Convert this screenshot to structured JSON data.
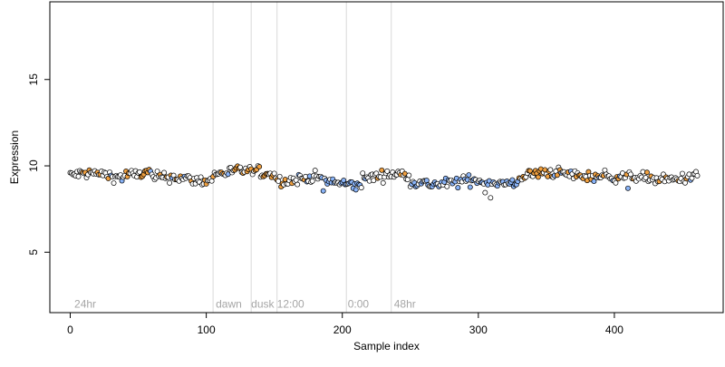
{
  "chart_data": {
    "type": "scatter",
    "title": "",
    "xlabel": "Sample index",
    "ylabel": "Expression",
    "xlim": [
      -15,
      480
    ],
    "ylim": [
      1.5,
      19.5
    ],
    "x_ticks": [
      0,
      100,
      200,
      300,
      400
    ],
    "y_ticks": [
      5,
      10,
      15
    ],
    "grid": false,
    "legend": "none",
    "n_points": 462,
    "colors": {
      "low": "#8ab4f8",
      "mid": "#ffffff",
      "high": "#f0a040",
      "outline": "#000000",
      "divider": "#d9d9d9",
      "annotation": "#a6a6a6"
    },
    "annotations": [
      {
        "x": 3,
        "y": 2.0,
        "label": "24hr"
      },
      {
        "x": 107,
        "y": 2.0,
        "label": "dawn"
      },
      {
        "x": 133,
        "y": 2.0,
        "label": "dusk"
      },
      {
        "x": 152,
        "y": 2.0,
        "label": "12:00"
      },
      {
        "x": 204,
        "y": 2.0,
        "label": "0:00"
      },
      {
        "x": 238,
        "y": 2.0,
        "label": "48hr"
      }
    ],
    "vlines": [
      105,
      133,
      152,
      203,
      236
    ],
    "series": [
      {
        "segments": [
          {
            "from": 0,
            "to": 40,
            "level": 9.45,
            "color": "mid"
          },
          {
            "from": 40,
            "to": 60,
            "level": 9.6,
            "color": "high"
          },
          {
            "from": 60,
            "to": 105,
            "level": 9.25,
            "color": "mid"
          },
          {
            "from": 105,
            "to": 152,
            "level": 9.6,
            "color": "high"
          },
          {
            "from": 152,
            "to": 185,
            "level": 9.25,
            "color": "mid"
          },
          {
            "from": 185,
            "to": 215,
            "level": 9.0,
            "color": "low"
          },
          {
            "from": 215,
            "to": 250,
            "level": 9.4,
            "color": "mid"
          },
          {
            "from": 250,
            "to": 330,
            "level": 9.05,
            "color": "low"
          },
          {
            "from": 330,
            "to": 395,
            "level": 9.5,
            "color": "high"
          },
          {
            "from": 395,
            "to": 462,
            "level": 9.3,
            "color": "mid"
          }
        ],
        "noise_sd": 0.28,
        "dips": [
          {
            "x": 309,
            "y": 8.15
          },
          {
            "x": 305,
            "y": 8.45
          },
          {
            "x": 186,
            "y": 8.55
          },
          {
            "x": 410,
            "y": 8.7
          }
        ]
      }
    ]
  }
}
